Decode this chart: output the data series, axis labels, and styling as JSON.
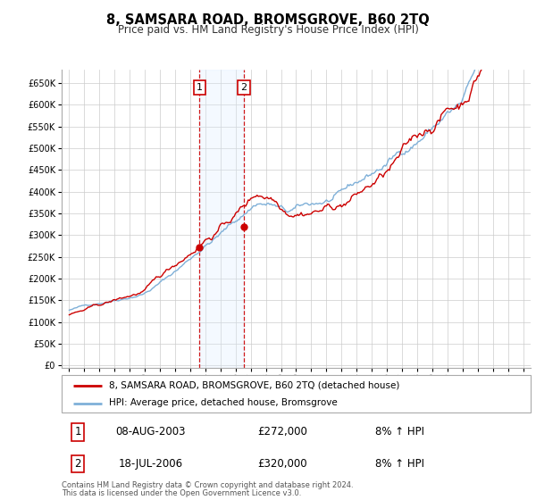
{
  "title": "8, SAMSARA ROAD, BROMSGROVE, B60 2TQ",
  "subtitle": "Price paid vs. HM Land Registry's House Price Index (HPI)",
  "legend_label_red": "8, SAMSARA ROAD, BROMSGROVE, B60 2TQ (detached house)",
  "legend_label_blue": "HPI: Average price, detached house, Bromsgrove",
  "sale1_date": "08-AUG-2003",
  "sale1_price": "£272,000",
  "sale1_hpi": "8% ↑ HPI",
  "sale1_year": 2003.6,
  "sale1_value": 272000,
  "sale2_date": "18-JUL-2006",
  "sale2_price": "£320,000",
  "sale2_hpi": "8% ↑ HPI",
  "sale2_year": 2006.54,
  "sale2_value": 320000,
  "footnote1": "Contains HM Land Registry data © Crown copyright and database right 2024.",
  "footnote2": "This data is licensed under the Open Government Licence v3.0.",
  "ylim_max": 650000,
  "xlim_start": 1994.5,
  "xlim_end": 2025.5,
  "background_color": "#ffffff",
  "grid_color": "#cccccc",
  "red_color": "#cc0000",
  "blue_color": "#7fb0d8",
  "shade_color": "#ddeeff",
  "noise_seed": 42
}
